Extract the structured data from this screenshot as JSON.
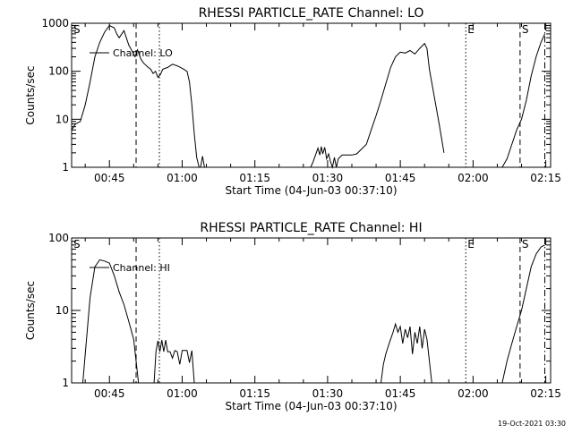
{
  "chart_data": [
    {
      "type": "line",
      "title": "RHESSI PARTICLE_RATE Channel: LO",
      "xlabel": "Start Time (04-Jun-03 00:37:10)",
      "ylabel": "Counts/sec",
      "xlim_minutes": [
        37.2,
        136.0
      ],
      "ylim": [
        1,
        1000
      ],
      "yscale": "log",
      "xticks": [
        {
          "m": 45,
          "label": "00:45"
        },
        {
          "m": 60,
          "label": "01:00"
        },
        {
          "m": 75,
          "label": "01:15"
        },
        {
          "m": 90,
          "label": "01:30"
        },
        {
          "m": 105,
          "label": "01:45"
        },
        {
          "m": 120,
          "label": "02:00"
        },
        {
          "m": 135,
          "label": "02:15"
        }
      ],
      "yticks": [
        {
          "v": 1,
          "label": "1"
        },
        {
          "v": 10,
          "label": "10"
        },
        {
          "v": 100,
          "label": "100"
        },
        {
          "v": 1000,
          "label": "1000"
        }
      ],
      "legend": "Channel: LO",
      "markers": [
        {
          "m": 50.5,
          "style": "dashed",
          "label": ""
        },
        {
          "m": 55.3,
          "style": "dotted",
          "label": ""
        },
        {
          "m": 118.5,
          "style": "dotted",
          "label": "E"
        },
        {
          "m": 129.7,
          "style": "dashed",
          "label": "S"
        },
        {
          "m": 134.8,
          "style": "dashdot",
          "label": ""
        }
      ],
      "corner_label": "S",
      "series": [
        {
          "segments": [
            [
              [
                37.2,
                6
              ],
              [
                38,
                8
              ],
              [
                39,
                9
              ],
              [
                40,
                20
              ],
              [
                41,
                60
              ],
              [
                42,
                200
              ],
              [
                43,
                400
              ],
              [
                44,
                650
              ],
              [
                45,
                900
              ],
              [
                46,
                800
              ],
              [
                46.5,
                600
              ],
              [
                47,
                500
              ],
              [
                48,
                700
              ],
              [
                49,
                350
              ],
              [
                49.8,
                250
              ],
              [
                50.3,
                200
              ],
              [
                50.8,
                280
              ],
              [
                51.5,
                180
              ],
              [
                52,
                150
              ],
              [
                53,
                120
              ],
              [
                53.5,
                110
              ],
              [
                54,
                90
              ],
              [
                54.5,
                100
              ],
              [
                55,
                75
              ],
              [
                55.5,
                85
              ],
              [
                56,
                110
              ],
              [
                57,
                120
              ],
              [
                58,
                140
              ],
              [
                59,
                130
              ],
              [
                60,
                115
              ],
              [
                61,
                100
              ],
              [
                61.5,
                60
              ],
              [
                62,
                20
              ],
              [
                62.5,
                5
              ],
              [
                63,
                1.6
              ],
              [
                63.5,
                1
              ]
            ],
            [
              [
                63.8,
                1
              ],
              [
                64.2,
                1.7
              ],
              [
                64.6,
                1
              ]
            ],
            [
              [
                86.5,
                1
              ],
              [
                87,
                1.3
              ],
              [
                87.5,
                1.8
              ],
              [
                88,
                2.5
              ],
              [
                88.4,
                1.8
              ],
              [
                88.7,
                2.7
              ],
              [
                89,
                1.9
              ],
              [
                89.4,
                2.6
              ],
              [
                89.8,
                1.5
              ],
              [
                90.2,
                1.9
              ],
              [
                90.6,
                1.3
              ],
              [
                91,
                1
              ],
              [
                91.4,
                1.6
              ],
              [
                91.8,
                1
              ],
              [
                92.2,
                1.5
              ],
              [
                93,
                1.8
              ],
              [
                94,
                1.8
              ],
              [
                95,
                1.8
              ],
              [
                96,
                1.9
              ],
              [
                97,
                2.4
              ],
              [
                98,
                3
              ],
              [
                99,
                6
              ],
              [
                100,
                12
              ],
              [
                101,
                25
              ],
              [
                102,
                55
              ],
              [
                103,
                120
              ],
              [
                104,
                200
              ],
              [
                105,
                250
              ],
              [
                106,
                240
              ],
              [
                107,
                270
              ],
              [
                108,
                230
              ],
              [
                109,
                300
              ],
              [
                110,
                380
              ],
              [
                110.5,
                300
              ],
              [
                111,
                110
              ],
              [
                112,
                30
              ],
              [
                113,
                8
              ],
              [
                114,
                2
              ]
            ],
            [
              [
                126,
                1
              ],
              [
                127,
                1.5
              ],
              [
                128,
                3
              ],
              [
                129,
                6
              ],
              [
                130,
                10
              ],
              [
                131,
                25
              ],
              [
                132,
                80
              ],
              [
                133,
                200
              ],
              [
                134,
                400
              ],
              [
                134.8,
                600
              ]
            ]
          ]
        }
      ]
    },
    {
      "type": "line",
      "title": "RHESSI PARTICLE_RATE Channel: HI",
      "xlabel": "Start Time (04-Jun-03 00:37:10)",
      "ylabel": "Counts/sec",
      "xlim_minutes": [
        37.2,
        136.0
      ],
      "ylim": [
        1,
        100
      ],
      "yscale": "log",
      "xticks": [
        {
          "m": 45,
          "label": "00:45"
        },
        {
          "m": 60,
          "label": "01:00"
        },
        {
          "m": 75,
          "label": "01:15"
        },
        {
          "m": 90,
          "label": "01:30"
        },
        {
          "m": 105,
          "label": "01:45"
        },
        {
          "m": 120,
          "label": "02:00"
        },
        {
          "m": 135,
          "label": "02:15"
        }
      ],
      "yticks": [
        {
          "v": 1,
          "label": "1"
        },
        {
          "v": 10,
          "label": "10"
        },
        {
          "v": 100,
          "label": "100"
        }
      ],
      "legend": "Channel: HI",
      "markers": [
        {
          "m": 50.5,
          "style": "dashed",
          "label": ""
        },
        {
          "m": 55.3,
          "style": "dotted",
          "label": ""
        },
        {
          "m": 118.5,
          "style": "dotted",
          "label": "E"
        },
        {
          "m": 129.7,
          "style": "dashed",
          "label": "S"
        },
        {
          "m": 134.8,
          "style": "dashdot",
          "label": ""
        }
      ],
      "corner_label": "S",
      "series": [
        {
          "segments": [
            [
              [
                39.5,
                1
              ],
              [
                40,
                2.5
              ],
              [
                41,
                15
              ],
              [
                42,
                40
              ],
              [
                43,
                50
              ],
              [
                44,
                48
              ],
              [
                45,
                45
              ],
              [
                46,
                30
              ],
              [
                47,
                18
              ],
              [
                48,
                12
              ],
              [
                49,
                7
              ],
              [
                50,
                4
              ],
              [
                50.5,
                2
              ],
              [
                51,
                1
              ]
            ],
            [
              [
                54.2,
                1
              ],
              [
                54.6,
                2.7
              ],
              [
                55,
                3.8
              ],
              [
                55.4,
                2.7
              ],
              [
                55.8,
                3.9
              ],
              [
                56.2,
                2.7
              ],
              [
                56.6,
                3.9
              ],
              [
                57,
                2.7
              ],
              [
                57.5,
                2.7
              ],
              [
                58,
                2.2
              ],
              [
                58.5,
                2.8
              ],
              [
                59,
                2.7
              ],
              [
                59.5,
                1.8
              ],
              [
                60,
                2.8
              ],
              [
                61,
                2.8
              ],
              [
                61.5,
                1.9
              ],
              [
                62,
                2.8
              ],
              [
                62.5,
                1
              ]
            ],
            [
              [
                101,
                1
              ],
              [
                101.5,
                1.8
              ],
              [
                102,
                2.5
              ],
              [
                102.5,
                3.2
              ],
              [
                103,
                4
              ],
              [
                103.5,
                5
              ],
              [
                104,
                6.5
              ],
              [
                104.5,
                5
              ],
              [
                105,
                6
              ],
              [
                105.5,
                3.5
              ],
              [
                106,
                5.5
              ],
              [
                106.5,
                4.2
              ],
              [
                107,
                6
              ],
              [
                107.5,
                2.5
              ],
              [
                108,
                5
              ],
              [
                108.5,
                3.5
              ],
              [
                109,
                6
              ],
              [
                109.5,
                3
              ],
              [
                110,
                5.5
              ],
              [
                110.5,
                4
              ],
              [
                111,
                2
              ],
              [
                111.5,
                1
              ]
            ],
            [
              [
                126,
                1
              ],
              [
                127,
                2
              ],
              [
                128,
                3.5
              ],
              [
                129,
                6
              ],
              [
                130,
                10
              ],
              [
                131,
                20
              ],
              [
                132,
                40
              ],
              [
                133,
                60
              ],
              [
                134,
                75
              ],
              [
                134.8,
                80
              ]
            ]
          ]
        }
      ]
    }
  ],
  "footer_timestamp": "19-Oct-2021 03:30"
}
